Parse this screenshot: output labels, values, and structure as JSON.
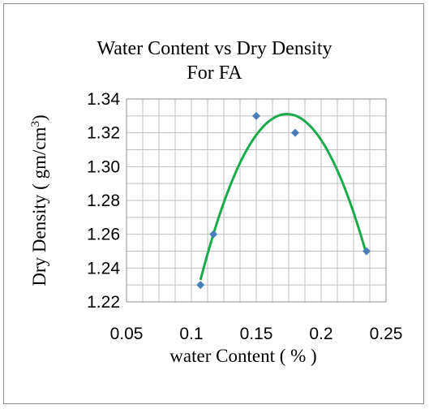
{
  "chart_data": {
    "type": "scatter",
    "title": "Water Content vs Dry Density",
    "subtitle": "For FA",
    "xlabel": "water Content ( % )",
    "ylabel": "Dry Density ( gm/cm3)",
    "xlim": [
      0.05,
      0.25
    ],
    "ylim": [
      1.22,
      1.34
    ],
    "x_ticks": [
      "0.05",
      "0.1",
      "0.15",
      "0.2",
      "0.25"
    ],
    "y_ticks": [
      "1.22",
      "1.24",
      "1.26",
      "1.28",
      "1.30",
      "1.32",
      "1.34"
    ],
    "grid": true,
    "series": [
      {
        "marker": "diamond",
        "x": [
          0.107,
          0.117,
          0.15,
          0.18,
          0.235
        ],
        "y": [
          1.23,
          1.26,
          1.33,
          1.32,
          1.25
        ]
      }
    ],
    "trendline": {
      "type": "polynomial",
      "order": 2
    },
    "colors": {
      "marker": "#4a7ebb",
      "trendline": "#1aab4a",
      "grid": "#bfbfbf"
    }
  }
}
